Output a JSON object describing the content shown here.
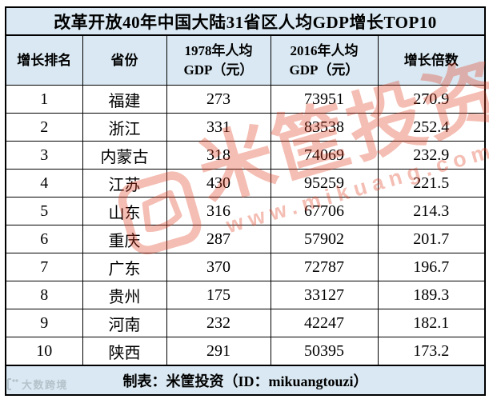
{
  "title": "改革开放40年中国大陆31省区人均GDP增长TOP10",
  "table": {
    "columns": [
      "增长排名",
      "省份",
      "1978年人均\nGDP（元）",
      "2016年人均\nGDP（元）",
      "增长倍数"
    ],
    "rows": [
      [
        "1",
        "福建",
        "273",
        "73951",
        "270.9"
      ],
      [
        "2",
        "浙江",
        "331",
        "83538",
        "252.4"
      ],
      [
        "3",
        "内蒙古",
        "318",
        "74069",
        "232.9"
      ],
      [
        "4",
        "江苏",
        "430",
        "95259",
        "221.5"
      ],
      [
        "5",
        "山东",
        "316",
        "67706",
        "214.3"
      ],
      [
        "6",
        "重庆",
        "287",
        "57902",
        "201.7"
      ],
      [
        "7",
        "广东",
        "370",
        "72787",
        "196.7"
      ],
      [
        "8",
        "贵州",
        "175",
        "33127",
        "189.3"
      ],
      [
        "9",
        "河南",
        "232",
        "42247",
        "182.1"
      ],
      [
        "10",
        "陕西",
        "291",
        "50395",
        "173.2"
      ]
    ]
  },
  "footer": "制表：米筐投资（ID：mikuangtouzi）",
  "watermark": {
    "brand": "米筐投资",
    "url": "www.mikuang.com",
    "color": "#e03c1e"
  },
  "corner_watermark": {
    "logo_icon": "data-source-logo",
    "text": "大数跨境"
  },
  "colors": {
    "header_bg": "#d9e8f2",
    "row_bg": "#ffffff",
    "border": "#000000",
    "watermark_red": "#e03c1e",
    "corner_watermark_gray": "#b3c0c9"
  },
  "chart_data": {
    "type": "table",
    "title": "改革开放40年中国大陆31省区人均GDP增长TOP10",
    "columns": [
      "增长排名",
      "省份",
      "1978年人均GDP（元）",
      "2016年人均GDP（元）",
      "增长倍数"
    ],
    "rows": [
      [
        1,
        "福建",
        273,
        73951,
        270.9
      ],
      [
        2,
        "浙江",
        331,
        83538,
        252.4
      ],
      [
        3,
        "内蒙古",
        318,
        74069,
        232.9
      ],
      [
        4,
        "江苏",
        430,
        95259,
        221.5
      ],
      [
        5,
        "山东",
        316,
        67706,
        214.3
      ],
      [
        6,
        "重庆",
        287,
        57902,
        201.7
      ],
      [
        7,
        "广东",
        370,
        72787,
        196.7
      ],
      [
        8,
        "贵州",
        175,
        33127,
        189.3
      ],
      [
        9,
        "河南",
        232,
        42247,
        182.1
      ],
      [
        10,
        "陕西",
        291,
        50395,
        173.2
      ]
    ],
    "footnote": "制表：米筐投资（ID：mikuangtouzi）"
  }
}
